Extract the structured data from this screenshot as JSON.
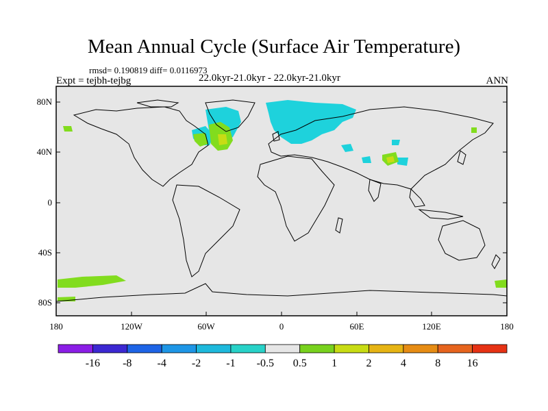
{
  "title": "Mean Annual Cycle (Surface Air Temperature)",
  "stats": "rmsd= 0.190819 diff= 0.0116973",
  "experiment": "Expt = tejbh-tejbg",
  "period": "22.0kyr-21.0kyr - 22.0kyr-21.0kyr",
  "season": "ANN",
  "lat_ticks": [
    "80N",
    "40N",
    "0",
    "40S",
    "80S"
  ],
  "lon_ticks": [
    "180",
    "120W",
    "60W",
    "0",
    "60E",
    "120E",
    "180"
  ],
  "colorbar": {
    "colors": [
      "#8b1ee6",
      "#3c28d2",
      "#1e64e6",
      "#1e96e6",
      "#1eb9dc",
      "#28d2c8",
      "#e6e6e6",
      "#78d21e",
      "#c8dc14",
      "#e6b414",
      "#e68c14",
      "#e6641e",
      "#e63214"
    ],
    "labels": [
      "-16",
      "-8",
      "-4",
      "-2",
      "-1",
      "-0.5",
      "0.5",
      "1",
      "2",
      "4",
      "8",
      "16"
    ]
  },
  "map_colors": {
    "ocean": "#e6e6e6",
    "coast": "#000000",
    "cyan": "#1ed2dc",
    "green": "#82dc1e",
    "yellow": "#c8dc14"
  }
}
